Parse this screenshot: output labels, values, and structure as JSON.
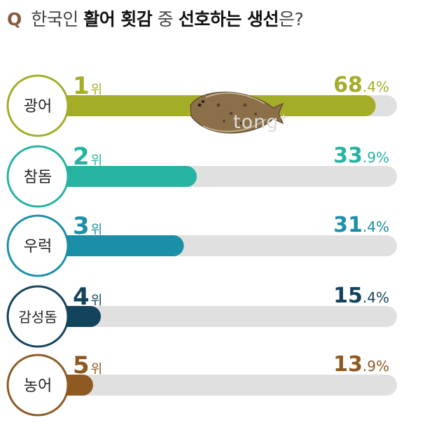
{
  "title": {
    "q_mark": "Q",
    "part1": "한국인",
    "part2": "활어 횟감",
    "part3": "중",
    "part4": "선호하는 생선",
    "part5": "은?"
  },
  "watermark": "tong",
  "watermark_sup": "+",
  "colors": {
    "track": "#e0e0e0",
    "q": "#8a5a3c"
  },
  "chart_data": {
    "type": "bar",
    "orientation": "horizontal",
    "categories": [
      "광어",
      "참돔",
      "우럭",
      "감성돔",
      "농어"
    ],
    "ranks": [
      "1",
      "2",
      "3",
      "4",
      "5"
    ],
    "rank_suffix": "위",
    "values": [
      68.4,
      33.9,
      31.4,
      15.4,
      13.9
    ],
    "value_int": [
      "68",
      "33",
      "31",
      "15",
      "13"
    ],
    "value_dec": [
      ".4%",
      ".9%",
      ".4%",
      ".4%",
      ".9%"
    ],
    "colors": [
      "#a4ad27",
      "#27b3a2",
      "#1c8fa8",
      "#14445c",
      "#8e5a22"
    ],
    "xlim": [
      0,
      72.5
    ]
  }
}
